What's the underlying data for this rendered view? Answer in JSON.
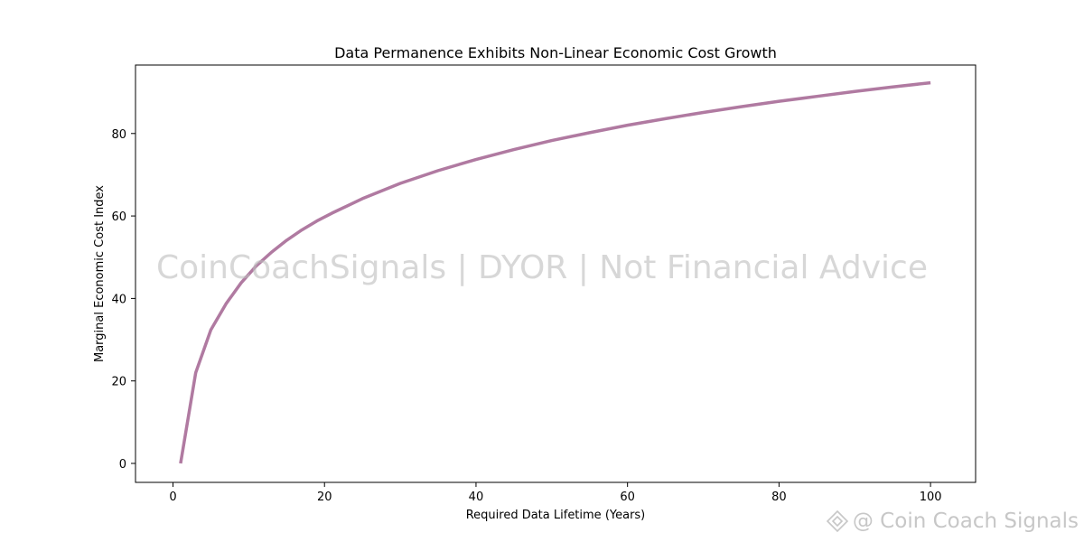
{
  "chart_data": {
    "type": "line",
    "title": "Data Permanence Exhibits Non-Linear Economic Cost Growth",
    "xlabel": "Required Data Lifetime (Years)",
    "ylabel": "Marginal Economic Cost Index",
    "xlim": [
      -4.95,
      105.95
    ],
    "ylim": [
      -4.6,
      96.6
    ],
    "x_ticks": [
      0,
      20,
      40,
      60,
      80,
      100
    ],
    "y_ticks": [
      0,
      20,
      40,
      60,
      80
    ],
    "grid": false,
    "series": [
      {
        "color": "#b07aa1",
        "x": [
          1,
          3,
          5,
          7,
          9,
          11,
          13,
          15,
          17,
          19,
          21,
          25,
          30,
          35,
          40,
          45,
          50,
          55,
          60,
          65,
          70,
          75,
          80,
          85,
          90,
          95,
          100
        ],
        "y": [
          0,
          22.0,
          32.4,
          38.7,
          43.8,
          47.9,
          51.2,
          54.1,
          56.6,
          58.8,
          60.7,
          64.2,
          67.9,
          71.0,
          73.7,
          76.1,
          78.3,
          80.2,
          82.0,
          83.6,
          85.1,
          86.5,
          87.8,
          89.0,
          90.2,
          91.3,
          92.3
        ]
      }
    ]
  },
  "watermark": "CoinCoachSignals | DYOR | Not Financial Advice",
  "corner_watermark": "@ Coin Coach Signals"
}
